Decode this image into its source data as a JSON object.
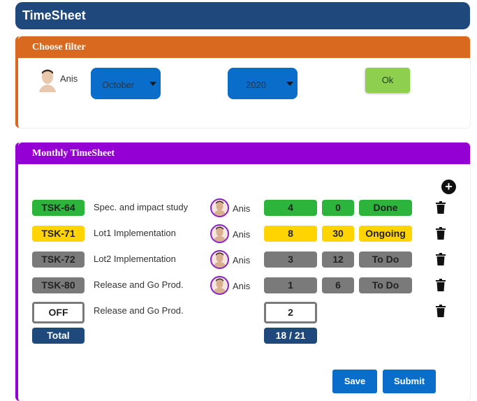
{
  "app": {
    "title": "TimeSheet"
  },
  "filter": {
    "header": "Choose filter",
    "user_name": "Anis",
    "month": "October",
    "year": "2020",
    "ok_label": "Ok"
  },
  "monthly": {
    "header": "Monthly TimeSheet",
    "rows": [
      {
        "task": "TSK-64",
        "task_color": "#2db43c",
        "description": "Spec. and impact study",
        "assignee": "Anis",
        "hours": "4",
        "percent": "0",
        "status": "Done",
        "color": "#2db43c"
      },
      {
        "task": "TSK-71",
        "task_color": "#ffd400",
        "description": "Lot1 Implementation",
        "assignee": "Anis",
        "hours": "8",
        "percent": "30",
        "status": "Ongoing",
        "color": "#ffd400"
      },
      {
        "task": "TSK-72",
        "task_color": "#7a7a7a",
        "description": "Lot2 Implementation",
        "assignee": "Anis",
        "hours": "3",
        "percent": "12",
        "status": "To Do",
        "color": "#7a7a7a"
      },
      {
        "task": "TSK-80",
        "task_color": "#7a7a7a",
        "description": "Release and Go Prod.",
        "assignee": "Anis",
        "hours": "1",
        "percent": "6",
        "status": "To Do",
        "color": "#7a7a7a"
      }
    ],
    "off_row": {
      "label": "OFF",
      "description": "Release and Go Prod.",
      "hours": "2"
    },
    "total": {
      "label": "Total",
      "value": "18 / 21"
    },
    "save_label": "Save",
    "submit_label": "Submit"
  },
  "colors": {
    "header_bg": "#1f497d",
    "filter_accent": "#d9691f",
    "monthly_accent": "#9400d3",
    "button_blue": "#0a6dc9",
    "ok_green": "#8ecf4f"
  }
}
